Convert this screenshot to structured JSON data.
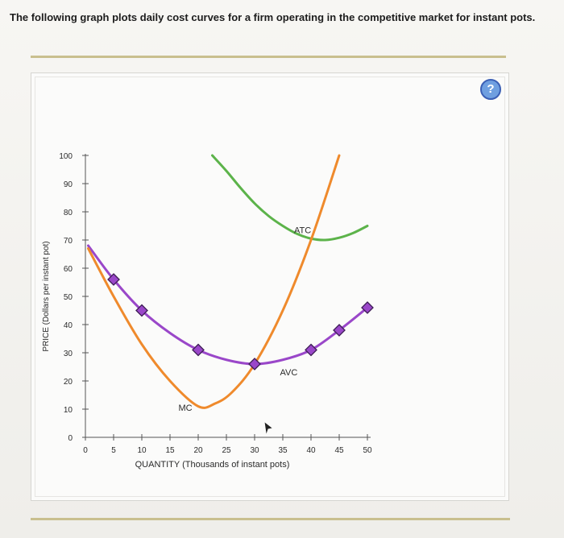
{
  "question_text": "The following graph plots daily cost curves for a firm operating in the competitive market for instant pots.",
  "help_icon": {
    "glyph": "?"
  },
  "colors": {
    "atc": "#5cb34a",
    "avc": "#9a47c9",
    "mc": "#ef8a2c",
    "marker": "#9a47c9",
    "axis": "#555555",
    "help": "#6f9fe0"
  },
  "chart_data": {
    "type": "line",
    "xlabel": "QUANTITY (Thousands of instant pots)",
    "ylabel": "PRICE (Dollars per instant pot)",
    "xlim": [
      0,
      50
    ],
    "ylim": [
      0,
      100
    ],
    "x_ticks": [
      0,
      5,
      10,
      15,
      20,
      25,
      30,
      35,
      40,
      45,
      50
    ],
    "y_ticks": [
      0,
      10,
      20,
      30,
      40,
      50,
      60,
      70,
      80,
      90,
      100
    ],
    "grid": false,
    "series": [
      {
        "name": "ATC",
        "color_key": "atc",
        "points": [
          [
            22.5,
            100
          ],
          [
            25,
            94.5
          ],
          [
            27.5,
            88.5
          ],
          [
            30,
            83
          ],
          [
            32.5,
            78.5
          ],
          [
            35,
            75
          ],
          [
            37.5,
            72.2
          ],
          [
            40,
            70.5
          ],
          [
            42.5,
            70
          ],
          [
            45,
            70.8
          ],
          [
            47.5,
            72.5
          ],
          [
            50,
            75
          ]
        ]
      },
      {
        "name": "AVC",
        "color_key": "avc",
        "points": [
          [
            0.5,
            68
          ],
          [
            5,
            56
          ],
          [
            10,
            45
          ],
          [
            15,
            37
          ],
          [
            20,
            31
          ],
          [
            25,
            27.5
          ],
          [
            30,
            26
          ],
          [
            35,
            27.5
          ],
          [
            40,
            31
          ],
          [
            45,
            38
          ],
          [
            50,
            46
          ]
        ],
        "markers": [
          [
            5,
            56
          ],
          [
            10,
            45
          ],
          [
            20,
            31
          ],
          [
            30,
            26
          ],
          [
            40,
            31
          ],
          [
            45,
            38
          ],
          [
            50,
            46
          ]
        ]
      },
      {
        "name": "MC",
        "color_key": "mc",
        "points": [
          [
            0.5,
            67
          ],
          [
            5,
            50
          ],
          [
            10,
            33
          ],
          [
            15,
            20
          ],
          [
            20,
            11
          ],
          [
            23,
            12
          ],
          [
            26,
            16
          ],
          [
            30,
            26
          ],
          [
            35,
            45
          ],
          [
            40,
            70
          ],
          [
            45,
            100
          ]
        ]
      }
    ],
    "labels": [
      {
        "text": "ATC",
        "x": 37,
        "y": 72.5
      },
      {
        "text": "AVC",
        "x": 34.5,
        "y": 22
      },
      {
        "text": "MC",
        "x": 16.5,
        "y": 9.5
      }
    ]
  }
}
